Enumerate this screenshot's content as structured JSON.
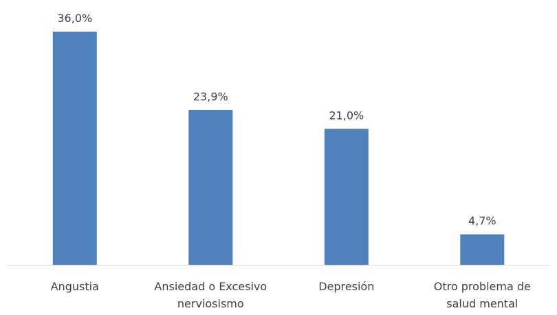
{
  "chart_data": {
    "type": "bar",
    "categories": [
      [
        "Angustia"
      ],
      [
        "Ansiedad o Excesivo",
        "nerviosismo"
      ],
      [
        "Depresión"
      ],
      [
        "Otro problema de",
        "salud mental"
      ]
    ],
    "values": [
      36.0,
      23.9,
      21.0,
      4.7
    ],
    "data_labels": [
      "36,0%",
      "23,9%",
      "21,0%",
      "4,7%"
    ],
    "unit": "%",
    "title": "",
    "xlabel": "",
    "ylabel": "",
    "ylim": [
      0,
      36.0
    ],
    "grid": false,
    "legend": "none",
    "colors": {
      "bar": "#4f81bd",
      "axis": "#d9d9d9",
      "text": "#404040"
    }
  }
}
